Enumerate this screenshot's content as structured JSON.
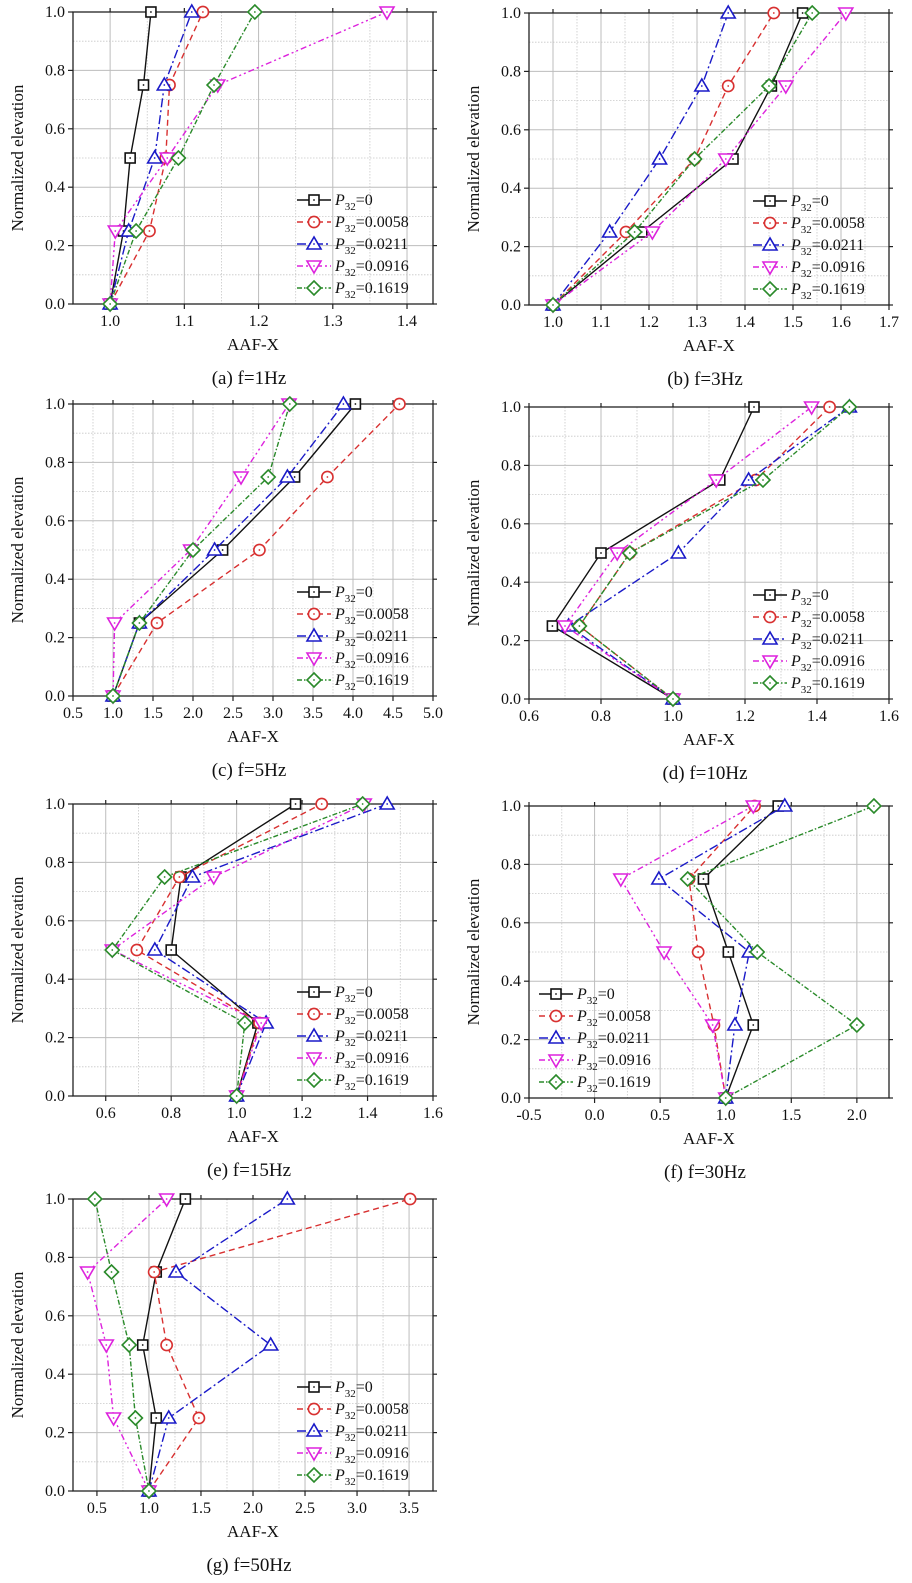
{
  "series_styles": [
    {
      "label_parts": [
        "P",
        "32",
        "=0"
      ],
      "color": "#111111",
      "marker": "square",
      "dash": ""
    },
    {
      "label_parts": [
        "P",
        "32",
        "=0.0058"
      ],
      "color": "#d83030",
      "marker": "circle",
      "dash": "6,4"
    },
    {
      "label_parts": [
        "P",
        "32",
        "=0.0211"
      ],
      "color": "#1a1ac8",
      "marker": "triangle-up",
      "dash": "9,3,2,3"
    },
    {
      "label_parts": [
        "P",
        "32",
        "=0.0916"
      ],
      "color": "#dd22dd",
      "marker": "triangle-down",
      "dash": "6,3,2,3,2,3"
    },
    {
      "label_parts": [
        "P",
        "32",
        "=0.1619"
      ],
      "color": "#2a8a2a",
      "marker": "diamond",
      "dash": "5,2,1.5,2"
    }
  ],
  "chart_data": [
    {
      "type": "line",
      "title": "(a) f=1Hz",
      "xlabel": "AAF-X",
      "ylabel": "Normalized elevation",
      "xlim": [
        0.95,
        1.435
      ],
      "xticks": [
        "1.0",
        "1.1",
        "1.2",
        "1.3",
        "1.4"
      ],
      "ylim": [
        0,
        1
      ],
      "yticks": [
        "0.0",
        "0.2",
        "0.4",
        "0.6",
        "0.8",
        "1.0"
      ],
      "grid": true,
      "legend": "bottom-right",
      "y": [
        0,
        0.25,
        0.5,
        0.75,
        1.0
      ],
      "series": [
        {
          "name": "P32=0",
          "x": [
            1.0,
            1.018,
            1.027,
            1.045,
            1.055
          ]
        },
        {
          "name": "P32=0.0058",
          "x": [
            1.0,
            1.053,
            1.075,
            1.08,
            1.125
          ]
        },
        {
          "name": "P32=0.0211",
          "x": [
            1.0,
            1.025,
            1.06,
            1.073,
            1.11
          ]
        },
        {
          "name": "P32=0.0916",
          "x": [
            1.0,
            1.007,
            1.077,
            1.145,
            1.373
          ]
        },
        {
          "name": "P32=0.1619",
          "x": [
            1.0,
            1.035,
            1.092,
            1.14,
            1.195
          ]
        }
      ]
    },
    {
      "type": "line",
      "title": "(b) f=3Hz",
      "xlabel": "AAF-X",
      "ylabel": "Normalized elevation",
      "xlim": [
        0.95,
        1.7
      ],
      "xticks": [
        "1.0",
        "1.1",
        "1.2",
        "1.3",
        "1.4",
        "1.5",
        "1.6",
        "1.7"
      ],
      "ylim": [
        0,
        1
      ],
      "yticks": [
        "0.0",
        "0.2",
        "0.4",
        "0.6",
        "0.8",
        "1.0"
      ],
      "grid": true,
      "legend": "bottom-right",
      "y": [
        0,
        0.25,
        0.5,
        0.75,
        1.0
      ],
      "series": [
        {
          "name": "P32=0",
          "x": [
            1.0,
            1.185,
            1.375,
            1.455,
            1.52
          ]
        },
        {
          "name": "P32=0.0058",
          "x": [
            1.0,
            1.152,
            1.295,
            1.365,
            1.46
          ]
        },
        {
          "name": "P32=0.0211",
          "x": [
            1.0,
            1.118,
            1.222,
            1.31,
            1.365
          ]
        },
        {
          "name": "P32=0.0916",
          "x": [
            1.0,
            1.207,
            1.36,
            1.485,
            1.61
          ]
        },
        {
          "name": "P32=0.1619",
          "x": [
            1.0,
            1.17,
            1.295,
            1.45,
            1.54
          ]
        }
      ]
    },
    {
      "type": "line",
      "title": "(c) f=5Hz",
      "xlabel": "AAF-X",
      "ylabel": "Normalized elevation",
      "xlim": [
        0.5,
        5.0
      ],
      "xticks": [
        "0.5",
        "1.0",
        "1.5",
        "2.0",
        "2.5",
        "3.0",
        "3.5",
        "4.0",
        "4.5",
        "5.0"
      ],
      "ylim": [
        0,
        1
      ],
      "yticks": [
        "0.0",
        "0.2",
        "0.4",
        "0.6",
        "0.8",
        "1.0"
      ],
      "grid": true,
      "legend": "bottom-right",
      "y": [
        0,
        0.25,
        0.5,
        0.75,
        1.0
      ],
      "series": [
        {
          "name": "P32=0",
          "x": [
            1.0,
            1.33,
            2.37,
            3.27,
            4.03
          ]
        },
        {
          "name": "P32=0.0058",
          "x": [
            1.0,
            1.55,
            2.83,
            3.68,
            4.58
          ]
        },
        {
          "name": "P32=0.0211",
          "x": [
            1.0,
            1.33,
            2.27,
            3.18,
            3.88
          ]
        },
        {
          "name": "P32=0.0916",
          "x": [
            1.0,
            1.02,
            1.97,
            2.6,
            3.2
          ]
        },
        {
          "name": "P32=0.1619",
          "x": [
            1.0,
            1.33,
            2.0,
            2.94,
            3.21
          ]
        }
      ]
    },
    {
      "type": "line",
      "title": "(d) f=10Hz",
      "xlabel": "AAF-X",
      "ylabel": "Normalized elevation",
      "xlim": [
        0.6,
        1.6
      ],
      "xticks": [
        "0.6",
        "0.8",
        "1.0",
        "1.2",
        "1.4",
        "1.6"
      ],
      "ylim": [
        0,
        1
      ],
      "yticks": [
        "0.0",
        "0.2",
        "0.4",
        "0.6",
        "0.8",
        "1.0"
      ],
      "grid": true,
      "legend": "bottom-right",
      "y": [
        0,
        0.25,
        0.5,
        0.75,
        1.0
      ],
      "series": [
        {
          "name": "P32=0",
          "x": [
            1.0,
            0.665,
            0.8,
            1.13,
            1.225
          ]
        },
        {
          "name": "P32=0.0058",
          "x": [
            1.0,
            0.74,
            0.88,
            1.23,
            1.435
          ]
        },
        {
          "name": "P32=0.0211",
          "x": [
            1.0,
            0.71,
            1.015,
            1.21,
            1.49
          ]
        },
        {
          "name": "P32=0.0916",
          "x": [
            1.0,
            0.7,
            0.845,
            1.12,
            1.385
          ]
        },
        {
          "name": "P32=0.1619",
          "x": [
            1.0,
            0.74,
            0.88,
            1.25,
            1.49
          ]
        }
      ]
    },
    {
      "type": "line",
      "title": "(e) f=15Hz",
      "xlabel": "AAF-X",
      "ylabel": "Normalized elevation",
      "xlim": [
        0.5,
        1.6
      ],
      "xticks": [
        "0.6",
        "0.8",
        "1.0",
        "1.2",
        "1.4",
        "1.6"
      ],
      "ylim": [
        0,
        1
      ],
      "yticks": [
        "0.0",
        "0.2",
        "0.4",
        "0.6",
        "0.8",
        "1.0"
      ],
      "grid": true,
      "legend": "bottom-right",
      "y": [
        0,
        0.25,
        0.5,
        0.75,
        1.0
      ],
      "series": [
        {
          "name": "P32=0",
          "x": [
            1.0,
            1.065,
            0.8,
            0.83,
            1.18
          ]
        },
        {
          "name": "P32=0.0058",
          "x": [
            1.0,
            1.07,
            0.695,
            0.825,
            1.26
          ]
        },
        {
          "name": "P32=0.0211",
          "x": [
            1.0,
            1.09,
            0.75,
            0.865,
            1.46
          ]
        },
        {
          "name": "P32=0.0916",
          "x": [
            1.0,
            1.075,
            0.62,
            0.93,
            1.39
          ]
        },
        {
          "name": "P32=0.1619",
          "x": [
            1.0,
            1.025,
            0.62,
            0.78,
            1.385
          ]
        }
      ]
    },
    {
      "type": "line",
      "title": "(f) f=30Hz",
      "xlabel": "AAF-X",
      "ylabel": "Normalized elevation",
      "xlim": [
        -0.5,
        2.245
      ],
      "xticks": [
        "-0.5",
        "0.0",
        "0.5",
        "1.0",
        "1.5",
        "2.0"
      ],
      "ylim": [
        0,
        1
      ],
      "yticks": [
        "0.0",
        "0.2",
        "0.4",
        "0.6",
        "0.8",
        "1.0"
      ],
      "grid": true,
      "legend": "bottom-left",
      "y": [
        0,
        0.25,
        0.5,
        0.75,
        1.0
      ],
      "series": [
        {
          "name": "P32=0",
          "x": [
            1.0,
            1.21,
            1.02,
            0.83,
            1.4
          ]
        },
        {
          "name": "P32=0.0058",
          "x": [
            1.0,
            0.91,
            0.79,
            0.72,
            1.22
          ]
        },
        {
          "name": "P32=0.0211",
          "x": [
            1.0,
            1.07,
            1.18,
            0.49,
            1.45
          ]
        },
        {
          "name": "P32=0.0916",
          "x": [
            1.0,
            0.9,
            0.53,
            0.2,
            1.21
          ]
        },
        {
          "name": "P32=0.1619",
          "x": [
            1.0,
            2.0,
            1.24,
            0.71,
            2.13
          ]
        }
      ]
    },
    {
      "type": "line",
      "title": "(g) f=50Hz",
      "xlabel": "AAF-X",
      "ylabel": "Normalized elevation",
      "xlim": [
        0.27,
        3.73
      ],
      "xticks": [
        "0.5",
        "1.0",
        "1.5",
        "2.0",
        "2.5",
        "3.0",
        "3.5"
      ],
      "ylim": [
        0,
        1
      ],
      "yticks": [
        "0.0",
        "0.2",
        "0.4",
        "0.6",
        "0.8",
        "1.0"
      ],
      "grid": true,
      "legend": "bottom-right",
      "y": [
        0,
        0.25,
        0.5,
        0.75,
        1.0
      ],
      "series": [
        {
          "name": "P32=0",
          "x": [
            1.0,
            1.07,
            0.94,
            1.07,
            1.35
          ]
        },
        {
          "name": "P32=0.0058",
          "x": [
            1.0,
            1.48,
            1.17,
            1.05,
            3.51
          ]
        },
        {
          "name": "P32=0.0211",
          "x": [
            1.0,
            1.19,
            2.17,
            1.26,
            2.33
          ]
        },
        {
          "name": "P32=0.0916",
          "x": [
            1.0,
            0.66,
            0.59,
            0.41,
            1.17
          ]
        },
        {
          "name": "P32=0.1619",
          "x": [
            1.0,
            0.87,
            0.81,
            0.64,
            0.48
          ]
        }
      ]
    }
  ]
}
